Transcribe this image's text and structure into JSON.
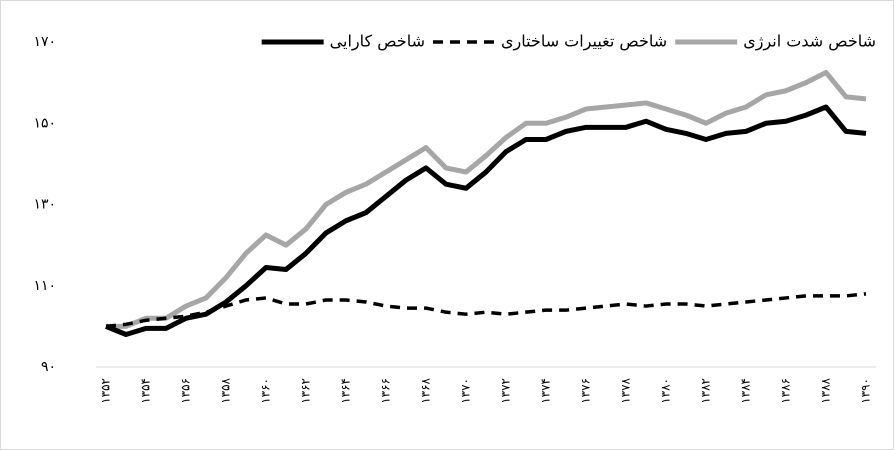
{
  "chart_data": {
    "type": "line",
    "categories": [
      "۱۳۵۲",
      null,
      "۱۳۵۴",
      null,
      "۱۳۵۶",
      null,
      "۱۳۵۸",
      null,
      "۱۳۶۰",
      null,
      "۱۳۶۲",
      null,
      "۱۳۶۴",
      null,
      "۱۳۶۶",
      null,
      "۱۳۶۸",
      null,
      "۱۳۷۰",
      null,
      "۱۳۷۲",
      null,
      "۱۳۷۴",
      null,
      "۱۳۷۶",
      null,
      "۱۳۷۸",
      null,
      "۱۳۸۰",
      null,
      "۱۳۸۲",
      null,
      "۱۳۸۴",
      null,
      "۱۳۸۶",
      null,
      "۱۳۸۸",
      null,
      "۱۳۹۰"
    ],
    "series": [
      {
        "name": "شاخص شدت انرژی",
        "color": "#a6a6a6",
        "dash": false,
        "values": [
          100,
          100,
          102,
          102,
          105,
          107,
          112,
          118,
          122.5,
          120,
          124,
          130,
          133,
          135,
          138,
          141,
          144,
          139,
          138,
          142,
          146.5,
          150,
          150,
          151.5,
          153.5,
          154,
          154.5,
          155,
          153.5,
          152,
          150,
          152.5,
          154,
          157,
          158,
          160,
          162.5,
          156.5,
          156
        ]
      },
      {
        "name": "شاخص تغییرات ساختاری",
        "color": "#000000",
        "dash": true,
        "values": [
          100,
          100.5,
          101.5,
          102,
          102.5,
          103.5,
          105,
          106.5,
          107,
          105.5,
          105.5,
          106.5,
          106.5,
          106,
          105,
          104.5,
          104.5,
          103.5,
          103,
          103.5,
          103,
          103.5,
          104,
          104,
          104.5,
          105,
          105.5,
          105,
          105.5,
          105.5,
          105,
          105.5,
          106,
          106.5,
          107,
          107.5,
          107.5,
          107.5,
          108
        ]
      },
      {
        "name": "شاخص کارایی",
        "color": "#000000",
        "dash": false,
        "values": [
          100,
          98,
          99.5,
          99.5,
          102,
          103,
          106,
          110,
          114.5,
          114,
          118,
          123,
          126,
          128,
          132,
          136,
          139,
          135,
          134,
          138,
          143,
          146,
          146,
          148,
          149,
          149,
          149,
          150.5,
          148.5,
          147.5,
          146,
          147.5,
          148,
          150,
          150.5,
          152,
          154,
          148,
          147.5
        ]
      }
    ],
    "ylim": [
      90,
      170
    ],
    "yticks": [
      {
        "value": 90,
        "label": "۹۰"
      },
      {
        "value": 110,
        "label": "۱۱۰"
      },
      {
        "value": 130,
        "label": "۱۳۰"
      },
      {
        "value": 150,
        "label": "۱۵۰"
      },
      {
        "value": 170,
        "label": "۱۷۰"
      }
    ],
    "grid": false
  }
}
